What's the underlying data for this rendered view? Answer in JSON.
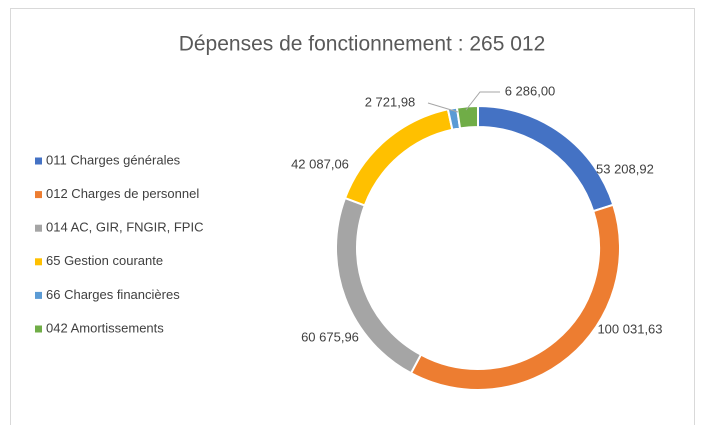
{
  "chart_data": {
    "type": "doughnut",
    "title": "Dépenses de fonctionnement : 265 012",
    "categories": [
      "011 Charges générales",
      "012 Charges de personnel",
      "014 AC, GIR, FNGIR, FPIC",
      "65 Gestion courante",
      "66 Charges financières",
      "042 Amortissements"
    ],
    "values": [
      53208.92,
      100031.63,
      60675.96,
      42087.06,
      2721.98,
      6286.0
    ],
    "value_labels": [
      "53 208,92",
      "100 031,63",
      "60 675,96",
      "42 087,06",
      "2 721,98",
      "6 286,00"
    ],
    "colors": [
      "#4472c4",
      "#ed7d31",
      "#a5a5a5",
      "#ffc000",
      "#5b9bd5",
      "#70ad47"
    ],
    "legend": "left"
  }
}
